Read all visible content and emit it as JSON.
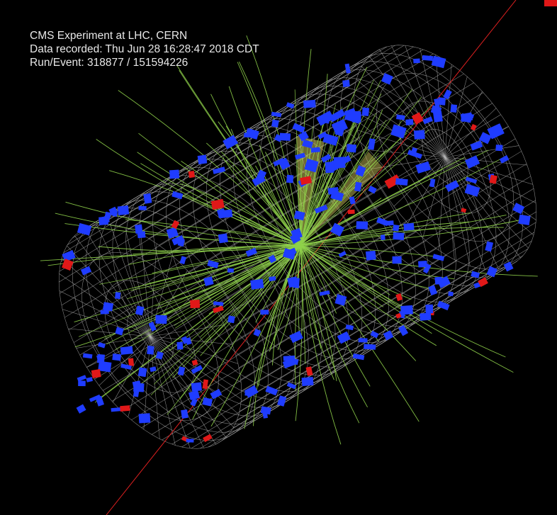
{
  "event_info": {
    "line1": "CMS Experiment at LHC, CERN",
    "line2": "Data recorded: Thu Jun 28 16:28:47 2018 CDT",
    "line3": "Run/Event: 318877 / 151594226"
  },
  "colors": {
    "background": "#000000",
    "detector_mesh": "#b9b9b9",
    "track": "#8fd14a",
    "hcal_tower": "#1f3cff",
    "ecal_tower": "#e01818",
    "jet_cone": "#c9c25a",
    "beam_line": "#e02020"
  }
}
